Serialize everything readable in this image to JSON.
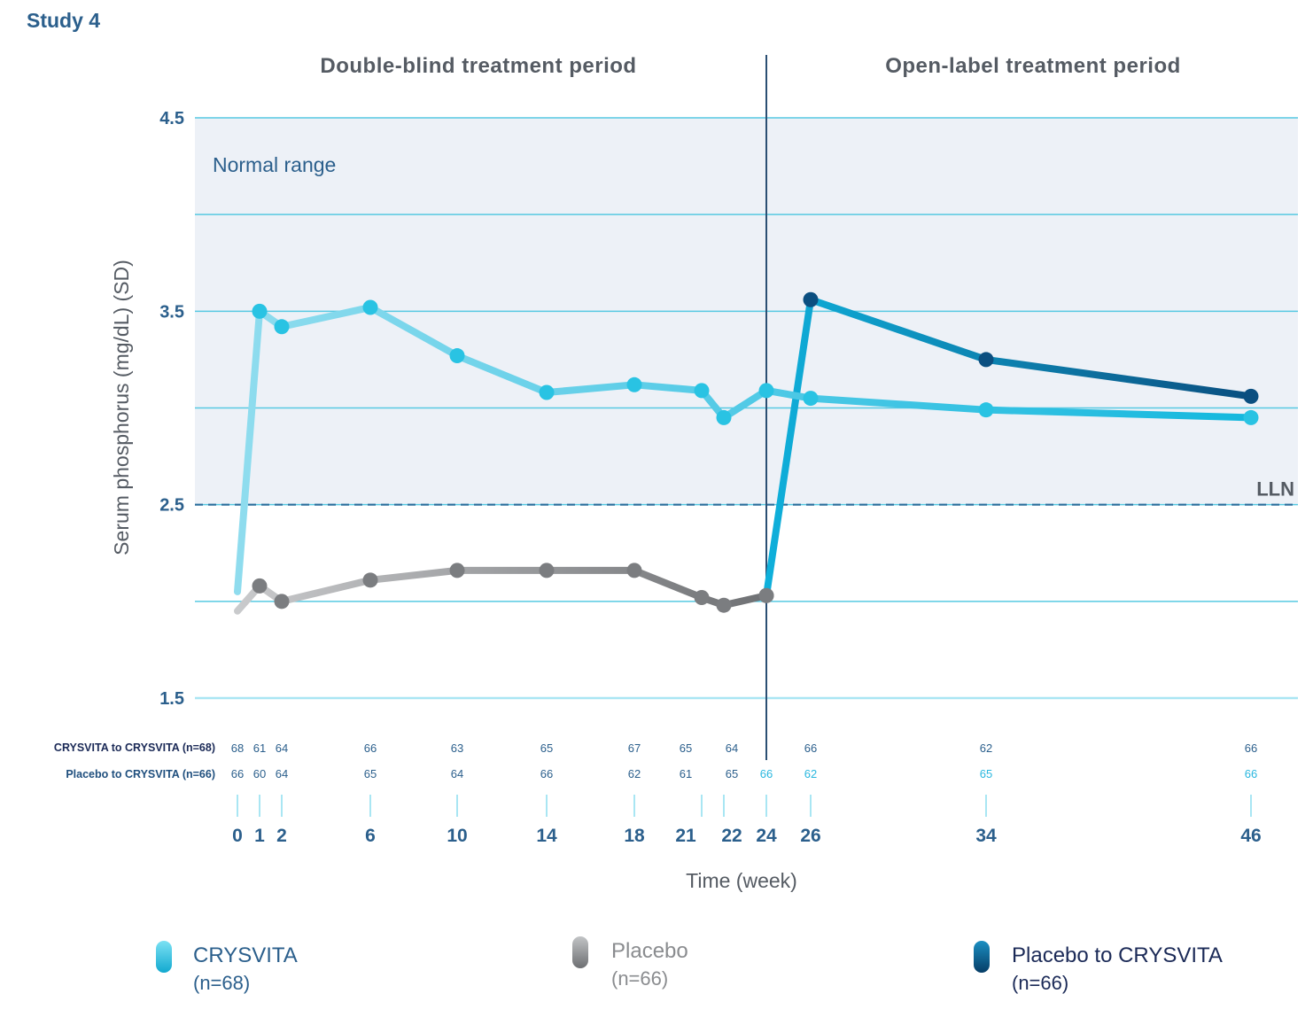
{
  "title": "Study 4",
  "periods": {
    "left": "Double-blind treatment period",
    "right": "Open-label treatment period"
  },
  "normal_range_label": "Normal range",
  "lln_label": "LLN",
  "n_rows": {
    "crysvita": {
      "label": "CRYSVITA to CRYSVITA (n=68)",
      "counts": [
        "68",
        "61",
        "64",
        "66",
        "63",
        "65",
        "67",
        "65",
        "64",
        "66",
        "62",
        "66"
      ],
      "weeks": [
        0,
        1,
        2,
        6,
        10,
        14,
        18,
        21,
        22,
        26,
        34,
        46
      ]
    },
    "placebo": {
      "label": "Placebo to CRYSVITA (n=66)",
      "counts": [
        "66",
        "60",
        "64",
        "65",
        "64",
        "66",
        "62",
        "61",
        "65",
        "66",
        "62",
        "65",
        "66"
      ],
      "weeks": [
        0,
        1,
        2,
        6,
        10,
        14,
        18,
        21,
        22,
        24,
        26,
        34,
        46
      ]
    }
  },
  "legend": [
    {
      "name": "CRYSVITA",
      "n": "(n=68)",
      "color": "#29c3e3",
      "text_color": "#2b5f8c"
    },
    {
      "name": "Placebo",
      "n": "(n=66)",
      "color": "#8a8c8f",
      "text_color": "#8a8c8f"
    },
    {
      "name": "Placebo to CRYSVITA",
      "n": "(n=66)",
      "color": "#0a6a9a",
      "text_color": "#1b2a57"
    }
  ],
  "chart_data": {
    "type": "line",
    "title": "Study 4",
    "xlabel": "Time (week)",
    "ylabel": "Serum phosphorus (mg/dL) (SD)",
    "ylim": [
      1.5,
      4.5
    ],
    "yticks": [
      1.5,
      2.5,
      3.5,
      4.5
    ],
    "y_gridlines": [
      1.5,
      2.0,
      2.5,
      3.0,
      3.5,
      4.0,
      4.5
    ],
    "xticks": [
      0,
      1,
      2,
      6,
      10,
      14,
      18,
      21,
      22,
      24,
      26,
      34,
      46
    ],
    "normal_range": [
      2.5,
      4.5
    ],
    "lln": 2.5,
    "period_divider_week": 24,
    "series": [
      {
        "name": "CRYSVITA",
        "color": "#29c3e3",
        "x": [
          0,
          1,
          2,
          6,
          10,
          14,
          18,
          21,
          22,
          24,
          26,
          34,
          46
        ],
        "y": [
          2.05,
          3.5,
          3.42,
          3.52,
          3.27,
          3.08,
          3.12,
          3.09,
          2.95,
          3.09,
          3.05,
          2.99,
          2.95
        ]
      },
      {
        "name": "Placebo",
        "color": "#8a8c8f",
        "x": [
          0,
          1,
          2,
          6,
          10,
          14,
          18,
          21,
          22,
          24
        ],
        "y": [
          1.95,
          2.08,
          2.0,
          2.11,
          2.16,
          2.16,
          2.16,
          2.02,
          1.98,
          2.03
        ]
      },
      {
        "name": "Placebo to CRYSVITA",
        "color": "#0a6a9a",
        "x": [
          24,
          26,
          34,
          46
        ],
        "y": [
          2.03,
          3.56,
          3.25,
          3.06
        ]
      }
    ]
  }
}
